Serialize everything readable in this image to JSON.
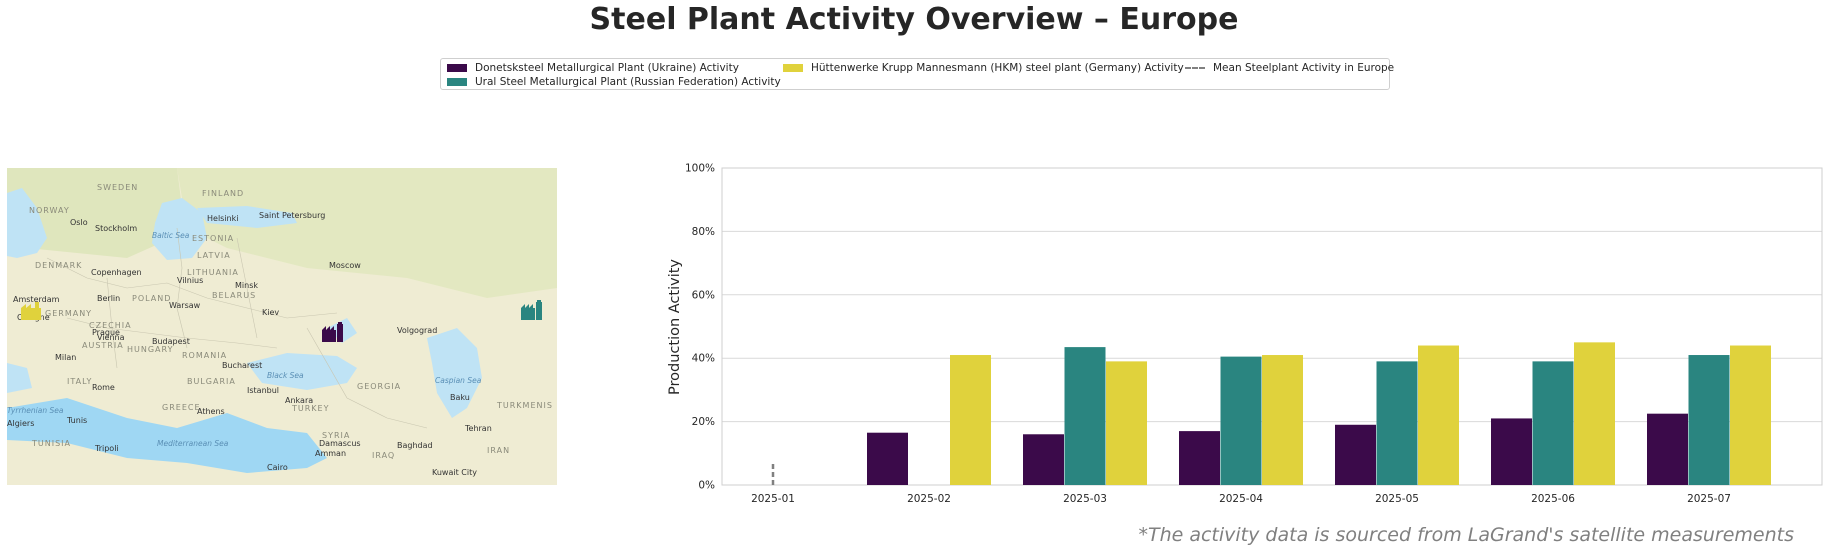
{
  "title": "Steel Plant Activity Overview – Europe",
  "footnote": "*The activity data is sourced from LaGrand's satellite measurements",
  "legend": {
    "placement": "top-center",
    "items": [
      {
        "label": "Donetsksteel Metallurgical Plant (Ukraine) Activity",
        "color": "#3b0a4a",
        "style": "patch"
      },
      {
        "label": "Ural Steel Metallurgical Plant (Russian Federation) Activity",
        "color": "#2a8580",
        "style": "patch"
      },
      {
        "label": "Hüttenwerke Krupp Mannesmann (HKM) steel plant (Germany) Activity",
        "color": "#e0d23c",
        "style": "patch"
      },
      {
        "label": "Mean Steelplant Activity in Europe",
        "color": "#808080",
        "style": "dashed-line"
      }
    ]
  },
  "map": {
    "labels": {
      "countries": [
        "SWEDEN",
        "FINLAND",
        "NORWAY",
        "ESTONIA",
        "LATVIA",
        "DENMARK",
        "LITHUANIA",
        "BELARUS",
        "POLAND",
        "GERMANY",
        "CZECHIA",
        "AUSTRIA",
        "HUNGARY",
        "ROMANIA",
        "ITALY",
        "BULGARIA",
        "GREECE",
        "TURKEY",
        "GEORGIA",
        "SYRIA",
        "IRAQ",
        "IRAN",
        "TUNISIA",
        "TURKMENIS"
      ],
      "cities": [
        "Oslo",
        "Stockholm",
        "Helsinki",
        "Saint Petersburg",
        "Copenhagen",
        "Vilnius",
        "Minsk",
        "Moscow",
        "Amsterdam",
        "Berlin",
        "Warsaw",
        "Kiev",
        "Cologne",
        "Prague",
        "Vienna",
        "Budapest",
        "Volgograd",
        "Milan",
        "Bucharest",
        "Rome",
        "Istanbul",
        "Ankara",
        "Baku",
        "Tunis",
        "Athens",
        "Tehran",
        "Tripoli",
        "Damascus",
        "Amman",
        "Baghdad",
        "Cairo",
        "Kuwait City",
        "Algiers"
      ],
      "seas": [
        "Baltic Sea",
        "Black Sea",
        "Caspian Sea",
        "Tyrrhenian Sea",
        "Mediterranean Sea"
      ]
    },
    "markers": [
      {
        "plant": "Hüttenwerke Krupp Mannesmann (HKM) steel plant (Germany)",
        "icon": "factory-icon",
        "color": "#e0d23c"
      },
      {
        "plant": "Donetsksteel Metallurgical Plant (Ukraine)",
        "icon": "factory-icon",
        "color": "#3b0a4a"
      },
      {
        "plant": "Ural Steel Metallurgical Plant (Russian Federation)",
        "icon": "factory-icon",
        "color": "#2a8580"
      }
    ]
  },
  "chart_data": {
    "type": "bar",
    "title": "",
    "xlabel": "",
    "ylabel": "Production Activity",
    "ylim": [
      0,
      100
    ],
    "yticks": [
      "0%",
      "20%",
      "40%",
      "60%",
      "80%",
      "100%"
    ],
    "ytick_values": [
      0,
      20,
      40,
      60,
      80,
      100
    ],
    "grid": true,
    "categories": [
      "2025-01",
      "2025-02",
      "2025-03",
      "2025-04",
      "2025-05",
      "2025-06",
      "2025-07"
    ],
    "series": [
      {
        "name": "Donetsksteel Metallurgical Plant (Ukraine) Activity",
        "color": "#3b0a4a",
        "values": [
          null,
          16.5,
          16,
          17,
          19,
          21,
          22.5
        ]
      },
      {
        "name": "Ural Steel Metallurgical Plant (Russian Federation) Activity",
        "color": "#2a8580",
        "values": [
          null,
          null,
          43.5,
          40.5,
          39,
          39,
          41
        ]
      },
      {
        "name": "Hüttenwerke Krupp Mannesmann (HKM) steel plant (Germany) Activity",
        "color": "#e0d23c",
        "values": [
          null,
          41,
          39,
          41,
          44,
          45,
          44
        ]
      }
    ],
    "mean_line": {
      "name": "Mean Steelplant Activity in Europe",
      "color": "#808080",
      "values": [
        7,
        null,
        null,
        null,
        null,
        null,
        null
      ]
    }
  }
}
